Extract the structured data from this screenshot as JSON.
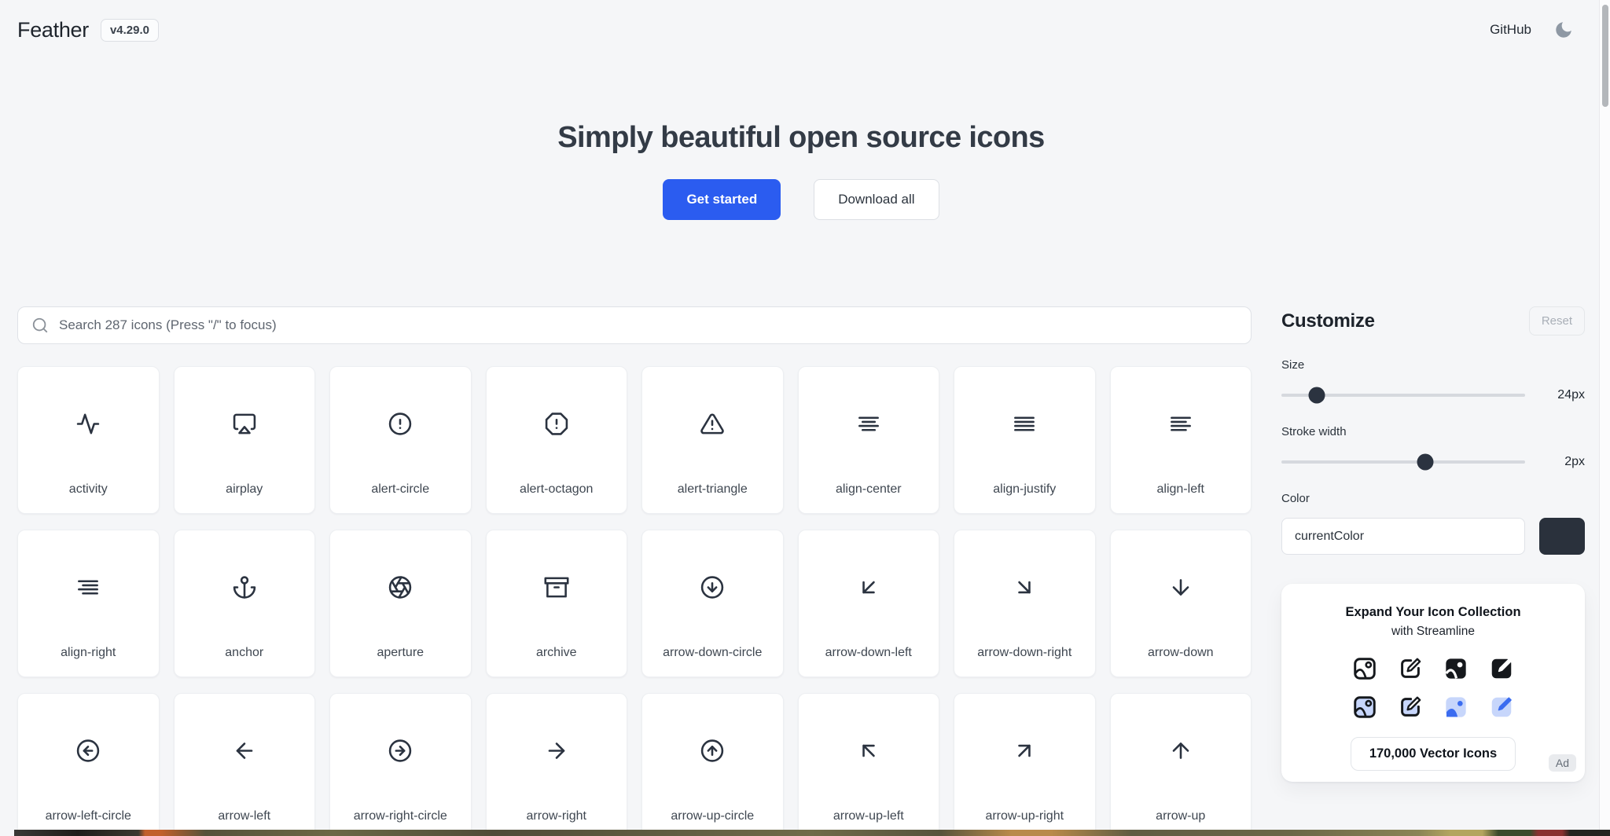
{
  "header": {
    "logo": "Feather",
    "version": "v4.29.0",
    "github_label": "GitHub"
  },
  "hero": {
    "title": "Simply beautiful open source icons",
    "get_started": "Get started",
    "download_all": "Download all"
  },
  "search": {
    "placeholder": "Search 287 icons (Press \"/\" to focus)"
  },
  "customize": {
    "title": "Customize",
    "reset_label": "Reset",
    "size_label": "Size",
    "size_value": "24px",
    "size_knob_pct": 14.5,
    "stroke_label": "Stroke width",
    "stroke_value": "2px",
    "stroke_knob_pct": 59,
    "color_label": "Color",
    "color_value": "currentColor",
    "swatch_color": "#2a313c"
  },
  "ad": {
    "title": "Expand Your Icon Collection",
    "subtitle": "with Streamline",
    "button_label": "170,000 Vector Icons",
    "badge": "Ad",
    "icon_names": [
      "image-outline",
      "edit-outline",
      "image-filled",
      "edit-filled",
      "image-outline-blue",
      "edit-outline-blue",
      "image-filled-blue",
      "edit-filled-blue"
    ],
    "accent_blue": "#3b6cf0",
    "light_blue": "#c7d6fb"
  },
  "icons": [
    "activity",
    "airplay",
    "alert-circle",
    "alert-octagon",
    "alert-triangle",
    "align-center",
    "align-justify",
    "align-left",
    "align-right",
    "anchor",
    "aperture",
    "archive",
    "arrow-down-circle",
    "arrow-down-left",
    "arrow-down-right",
    "arrow-down",
    "arrow-left-circle",
    "arrow-left",
    "arrow-right-circle",
    "arrow-right",
    "arrow-up-circle",
    "arrow-up-left",
    "arrow-up-right",
    "arrow-up"
  ],
  "colors": {
    "accent": "#2b5cf0",
    "page_bg": "#f5f6f8",
    "icon_stroke": "#2b3340",
    "moon_fill": "#8e98a4",
    "scroll_thumb": "#b4b7bb"
  }
}
